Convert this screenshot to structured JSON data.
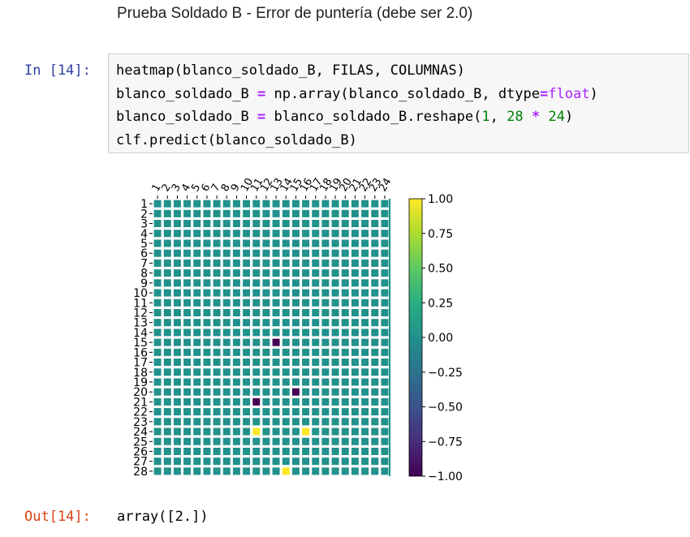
{
  "markdown": {
    "text": "Prueba Soldado B - Error de puntería (debe ser 2.0)"
  },
  "input_cell": {
    "prompt": "In [14]:",
    "lines": [
      {
        "parts": [
          {
            "t": "heatmap(blanco_soldado_B, FILAS, COLUMNAS)",
            "c": ""
          }
        ]
      },
      {
        "parts": [
          {
            "t": "blanco_soldado_B ",
            "c": ""
          },
          {
            "t": "=",
            "c": "op"
          },
          {
            "t": " np.array(blanco_soldado_B, dtype",
            "c": ""
          },
          {
            "t": "=",
            "c": "op"
          },
          {
            "t": "float",
            "c": "builtin"
          },
          {
            "t": ")",
            "c": ""
          }
        ]
      },
      {
        "parts": [
          {
            "t": "blanco_soldado_B ",
            "c": ""
          },
          {
            "t": "=",
            "c": "op"
          },
          {
            "t": " blanco_soldado_B.reshape(",
            "c": ""
          },
          {
            "t": "1",
            "c": "num"
          },
          {
            "t": ", ",
            "c": ""
          },
          {
            "t": "28",
            "c": "num"
          },
          {
            "t": " ",
            "c": ""
          },
          {
            "t": "*",
            "c": "op"
          },
          {
            "t": " ",
            "c": ""
          },
          {
            "t": "24",
            "c": "num"
          },
          {
            "t": ")",
            "c": ""
          }
        ]
      },
      {
        "parts": [
          {
            "t": "clf.predict(blanco_soldado_B)",
            "c": ""
          }
        ]
      }
    ]
  },
  "output_cell": {
    "prompt": "Out[14]:",
    "value": "array([2.])"
  },
  "colors": {
    "background": "#ffffff",
    "cell_bg": "#f7f7f7",
    "cell_border": "#cfcfcf",
    "in_prompt": "#303F9F",
    "out_prompt": "#D84315",
    "cell_zero": "#21918c",
    "cell_neg": "#440154",
    "cell_pos": "#fde725"
  },
  "chart_data": {
    "type": "heatmap",
    "rows": 28,
    "cols": 24,
    "x_tick_labels": [
      "1",
      "2",
      "3",
      "4",
      "5",
      "6",
      "7",
      "8",
      "9",
      "10",
      "11",
      "12",
      "13",
      "14",
      "15",
      "16",
      "17",
      "18",
      "19",
      "20",
      "21",
      "22",
      "23",
      "24"
    ],
    "y_tick_labels": [
      "1",
      "2",
      "3",
      "4",
      "5",
      "6",
      "7",
      "8",
      "9",
      "10",
      "11",
      "12",
      "13",
      "14",
      "15",
      "16",
      "17",
      "18",
      "19",
      "20",
      "21",
      "22",
      "23",
      "24",
      "25",
      "26",
      "27",
      "28"
    ],
    "default_value": 0,
    "cells": [
      {
        "row": 15,
        "col": 13,
        "value": -1
      },
      {
        "row": 20,
        "col": 15,
        "value": -1
      },
      {
        "row": 21,
        "col": 11,
        "value": -1
      },
      {
        "row": 24,
        "col": 11,
        "value": 1
      },
      {
        "row": 24,
        "col": 16,
        "value": 1
      },
      {
        "row": 28,
        "col": 14,
        "value": 1
      }
    ],
    "colormap": "viridis",
    "colorbar": {
      "range": [
        -1.0,
        1.0
      ],
      "ticks": [
        {
          "value": 1.0,
          "label": "1.00"
        },
        {
          "value": 0.75,
          "label": "0.75"
        },
        {
          "value": 0.5,
          "label": "0.50"
        },
        {
          "value": 0.25,
          "label": "0.25"
        },
        {
          "value": 0.0,
          "label": "0.00"
        },
        {
          "value": -0.25,
          "label": "−0.25"
        },
        {
          "value": -0.5,
          "label": "−0.50"
        },
        {
          "value": -0.75,
          "label": "−0.75"
        },
        {
          "value": -1.0,
          "label": "−1.00"
        }
      ]
    },
    "grid": true
  }
}
